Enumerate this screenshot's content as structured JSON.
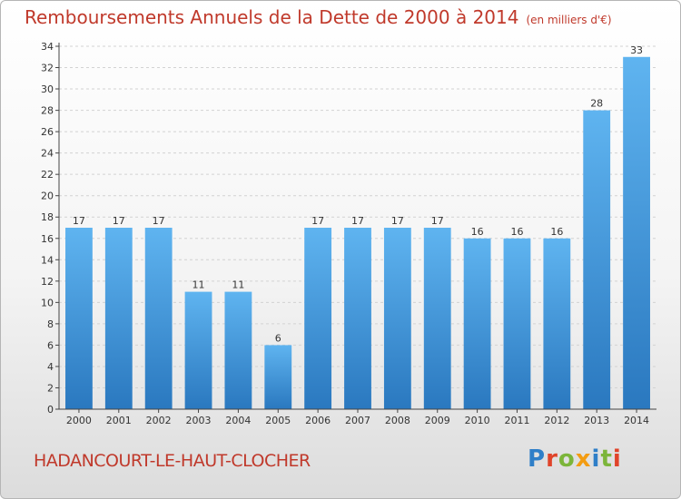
{
  "chart_data": {
    "type": "bar",
    "title": "Remboursements Annuels de la Dette de 2000 à 2014",
    "subtitle": "(en milliers d'€)",
    "categories": [
      "2000",
      "2001",
      "2002",
      "2003",
      "2004",
      "2005",
      "2006",
      "2007",
      "2008",
      "2009",
      "2010",
      "2011",
      "2012",
      "2013",
      "2014"
    ],
    "values": [
      17,
      17,
      17,
      11,
      11,
      6,
      17,
      17,
      17,
      17,
      16,
      16,
      16,
      28,
      33
    ],
    "ylim": [
      0,
      34
    ],
    "yticks": [
      "0",
      "2",
      "4",
      "6",
      "8",
      "10",
      "12",
      "14",
      "16",
      "18",
      "20",
      "22",
      "24",
      "26",
      "28",
      "30",
      "32",
      "34"
    ],
    "grid": true,
    "bar_color": "#4a9fe0",
    "title_color": "#c0392b"
  },
  "footer": {
    "city": "HADANCOURT-LE-HAUT-CLOCHER"
  },
  "logo": {
    "letters": [
      {
        "char": "P",
        "color": "#2f7fc8"
      },
      {
        "char": "r",
        "color": "#e0442a"
      },
      {
        "char": "o",
        "color": "#7cb53a"
      },
      {
        "char": "x",
        "color": "#f39c12"
      },
      {
        "char": "i",
        "color": "#2f7fc8"
      },
      {
        "char": "t",
        "color": "#7cb53a"
      },
      {
        "char": "i",
        "color": "#e0442a"
      }
    ]
  }
}
